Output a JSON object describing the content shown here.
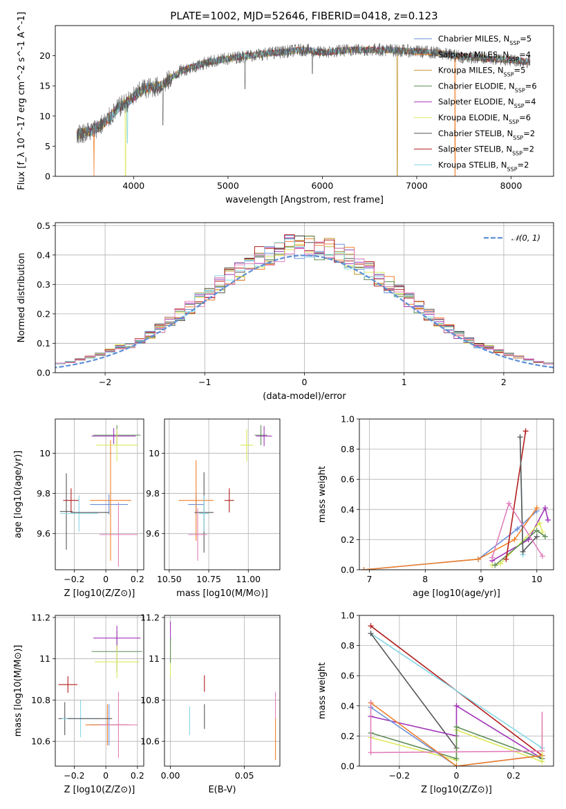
{
  "figure_title": "PLATE=1002, MJD=52646, FIBERID=0418, z=0.123",
  "colors": {
    "Chabrier MILES": "#6a8fd8",
    "Salpeter MILES": "#ef7f2a",
    "Kroupa MILES": "#c0962d",
    "Chabrier ELODIE": "#5e8d57",
    "Salpeter ELODIE": "#a032b8",
    "Kroupa ELODIE": "#dbe85a",
    "Chabrier STELIB": "#555555",
    "Salpeter STELIB": "#b21c1c",
    "Kroupa STELIB": "#85d6e6",
    "pink": "#e27fbb",
    "normal_curve": "#5b8fd6"
  },
  "chart_data": [
    {
      "id": "spectrum",
      "type": "line",
      "title": "PLATE=1002, MJD=52646, FIBERID=0418, z=0.123",
      "xlabel": "wavelength [Angstrom, rest frame]",
      "ylabel": "Flux [f_λ 10^-17 erg cm^-2 s^-1 A^-1]",
      "xlim": [
        3170,
        8450
      ],
      "ylim": [
        0,
        25
      ],
      "xticks": [
        4000,
        5000,
        6000,
        7000,
        8000
      ],
      "yticks": [
        0,
        5,
        10,
        15,
        20
      ],
      "legend_position": "right",
      "legend": [
        {
          "label": "Chabrier MILES",
          "nssp": "5"
        },
        {
          "label": "Salpeter MILES",
          "nssp": "4"
        },
        {
          "label": "Kroupa MILES",
          "nssp": "5"
        },
        {
          "label": "Chabrier ELODIE",
          "nssp": "6"
        },
        {
          "label": "Salpeter ELODIE",
          "nssp": "4"
        },
        {
          "label": "Kroupa ELODIE",
          "nssp": "6"
        },
        {
          "label": "Chabrier STELIB",
          "nssp": "2"
        },
        {
          "label": "Salpeter STELIB",
          "nssp": "2"
        },
        {
          "label": "Kroupa STELIB",
          "nssp": "2"
        }
      ],
      "continuum": [
        [
          3400,
          7.0
        ],
        [
          3550,
          7.5
        ],
        [
          3700,
          9.0
        ],
        [
          3850,
          11.5
        ],
        [
          3950,
          12.5
        ],
        [
          4100,
          14.5
        ],
        [
          4300,
          15.0
        ],
        [
          4500,
          17.5
        ],
        [
          4800,
          19.0
        ],
        [
          5000,
          19.5
        ],
        [
          5200,
          20.0
        ],
        [
          5500,
          20.5
        ],
        [
          5800,
          21.0
        ],
        [
          6000,
          20.5
        ],
        [
          6300,
          21.0
        ],
        [
          6600,
          21.0
        ],
        [
          6900,
          20.8
        ],
        [
          7200,
          20.5
        ],
        [
          7500,
          19.8
        ],
        [
          7800,
          19.5
        ],
        [
          8000,
          19.3
        ],
        [
          8200,
          19.0
        ]
      ],
      "dips": [
        {
          "x": 3580,
          "y": 0,
          "series": "Salpeter MILES"
        },
        {
          "x": 3915,
          "y": 0,
          "series": "Kroupa ELODIE"
        },
        {
          "x": 3935,
          "y": 5.5,
          "series": "Kroupa STELIB"
        },
        {
          "x": 4310,
          "y": 8.5,
          "series": "Chabrier STELIB"
        },
        {
          "x": 5180,
          "y": 14.5,
          "series": "Chabrier STELIB"
        },
        {
          "x": 5895,
          "y": 17.0,
          "series": "Chabrier STELIB"
        },
        {
          "x": 6795,
          "y": 0,
          "series": "Kroupa MILES"
        },
        {
          "x": 7405,
          "y": 0,
          "series": "Salpeter MILES"
        }
      ]
    },
    {
      "id": "residual_histogram",
      "type": "histogram",
      "xlabel": "(data-model)/error",
      "ylabel": "Normed distribution",
      "xlim": [
        -2.5,
        2.5
      ],
      "ylim": [
        0,
        0.51
      ],
      "xticks": [
        -2,
        -1,
        0,
        1,
        2
      ],
      "yticks": [
        0.0,
        0.1,
        0.2,
        0.3,
        0.4,
        0.5
      ],
      "bin_width": 0.1,
      "normal_label": "𝒩(0, 1)",
      "legend_position": "top-right"
    },
    {
      "id": "Z_vs_age",
      "type": "scatter",
      "xlabel": "Z [log10(Z/Z⊙)]",
      "ylabel": "age [log10(age/yr)]",
      "xlim": [
        -0.32,
        0.24
      ],
      "ylim": [
        9.42,
        10.17
      ],
      "xticks": [
        -0.2,
        0.0,
        0.2
      ],
      "yticks": [
        9.6,
        9.8,
        10.0
      ],
      "points": [
        {
          "series": "Chabrier MILES",
          "x": 0.02,
          "y": 9.745,
          "xerr": 0.12,
          "yerr": 0.05
        },
        {
          "series": "Salpeter MILES",
          "x": 0.03,
          "y": 9.765,
          "xerr": 0.13,
          "yerr": 0.3
        },
        {
          "series": "Chabrier ELODIE",
          "x": 0.07,
          "y": 10.09,
          "xerr": 0.15,
          "yerr": 0.05
        },
        {
          "series": "Salpeter ELODIE",
          "x": 0.05,
          "y": 10.085,
          "xerr": 0.14,
          "yerr": 0.04
        },
        {
          "series": "Kroupa ELODIE",
          "x": 0.07,
          "y": 10.04,
          "xerr": 0.13,
          "yerr": 0.08
        },
        {
          "series": "Chabrier STELIB",
          "x": -0.25,
          "y": 9.71,
          "xerr": 0.04,
          "yerr": 0.19
        },
        {
          "series": "Salpeter STELIB",
          "x": -0.22,
          "y": 9.765,
          "xerr": 0.05,
          "yerr": 0.06
        },
        {
          "series": "Kroupa STELIB",
          "x": -0.17,
          "y": 9.7,
          "xerr": 0.12,
          "yerr": 0.09
        },
        {
          "series": "pink",
          "x": 0.08,
          "y": 9.595,
          "xerr": 0.12,
          "yerr": 0.16
        },
        {
          "series": "Chabrier STELIB",
          "x": -0.1,
          "y": 9.705,
          "xerr": 0.12,
          "yerr": 0.0
        }
      ]
    },
    {
      "id": "mass_vs_age",
      "type": "scatter",
      "xlabel": "mass [log10(M/M⊙)]",
      "ylabel": "",
      "xlim": [
        10.47,
        11.2
      ],
      "ylim": [
        9.42,
        10.17
      ],
      "xticks": [
        10.5,
        10.75,
        11.0
      ],
      "xtick_labels": [
        "10.50",
        "10.75",
        "11.00"
      ],
      "yticks": [
        9.6,
        9.8,
        10.0
      ],
      "points": [
        {
          "series": "Chabrier MILES",
          "x": 10.67,
          "y": 9.745,
          "xerr": 0.05,
          "yerr": 0.05
        },
        {
          "series": "Salpeter MILES",
          "x": 10.67,
          "y": 9.765,
          "xerr": 0.11,
          "yerr": 0.2
        },
        {
          "series": "Chabrier ELODIE",
          "x": 11.08,
          "y": 10.09,
          "xerr": 0.04,
          "yerr": 0.05
        },
        {
          "series": "Salpeter ELODIE",
          "x": 11.1,
          "y": 10.085,
          "xerr": 0.05,
          "yerr": 0.05
        },
        {
          "series": "Kroupa ELODIE",
          "x": 10.99,
          "y": 10.04,
          "xerr": 0.04,
          "yerr": 0.08
        },
        {
          "series": "Chabrier STELIB",
          "x": 10.72,
          "y": 9.705,
          "xerr": 0.06,
          "yerr": 0.2
        },
        {
          "series": "Salpeter STELIB",
          "x": 10.88,
          "y": 9.765,
          "xerr": 0.03,
          "yerr": 0.06
        },
        {
          "series": "Kroupa STELIB",
          "x": 10.72,
          "y": 9.7,
          "xerr": 0.03,
          "yerr": 0.09
        },
        {
          "series": "pink",
          "x": 10.68,
          "y": 9.595,
          "xerr": 0.06,
          "yerr": 0.13
        }
      ]
    },
    {
      "id": "age_vs_weight",
      "type": "line",
      "xlabel": "age [log10(age/yr)]",
      "ylabel": "mass weight",
      "xlim": [
        6.82,
        10.3
      ],
      "ylim": [
        0,
        1.0
      ],
      "xticks": [
        7,
        8,
        9,
        10
      ],
      "yticks": [
        0.0,
        0.2,
        0.4,
        0.6,
        0.8,
        1.0
      ],
      "series": [
        {
          "name": "Chabrier MILES",
          "points": [
            [
              6.9,
              0.0
            ],
            [
              8.95,
              0.07
            ],
            [
              9.65,
              0.27
            ],
            [
              10.0,
              0.39
            ]
          ]
        },
        {
          "name": "Salpeter MILES",
          "points": [
            [
              6.9,
              0.0
            ],
            [
              8.95,
              0.07
            ],
            [
              9.6,
              0.2
            ],
            [
              10.0,
              0.41
            ]
          ]
        },
        {
          "name": "Salpeter ELODIE",
          "points": [
            [
              9.2,
              0.06
            ],
            [
              9.85,
              0.2
            ],
            [
              10.15,
              0.41
            ],
            [
              10.2,
              0.33
            ]
          ]
        },
        {
          "name": "Kroupa ELODIE",
          "points": [
            [
              9.2,
              0.03
            ],
            [
              9.35,
              0.04
            ],
            [
              10.05,
              0.31
            ],
            [
              10.1,
              0.25
            ]
          ]
        },
        {
          "name": "Chabrier ELODIE",
          "points": [
            [
              9.25,
              0.03
            ],
            [
              10.0,
              0.26
            ],
            [
              10.15,
              0.22
            ]
          ]
        },
        {
          "name": "Salpeter STELIB",
          "points": [
            [
              9.45,
              0.07
            ],
            [
              9.8,
              0.92
            ]
          ]
        },
        {
          "name": "Kroupa STELIB",
          "points": [
            [
              9.7,
              0.88
            ],
            [
              9.75,
              0.1
            ]
          ]
        },
        {
          "name": "Chabrier STELIB",
          "points": [
            [
              9.7,
              0.88
            ],
            [
              9.75,
              0.12
            ],
            [
              10.0,
              0.22
            ]
          ]
        },
        {
          "name": "pink",
          "points": [
            [
              9.2,
              0.08
            ],
            [
              9.5,
              0.44
            ],
            [
              10.1,
              0.09
            ]
          ]
        }
      ]
    },
    {
      "id": "Z_vs_mass",
      "type": "scatter",
      "xlabel": "Z [log10(Z/Z⊙)]",
      "ylabel": "mass [log10(M/M⊙)]",
      "xlim": [
        -0.32,
        0.24
      ],
      "ylim": [
        10.48,
        11.21
      ],
      "xticks": [
        -0.2,
        0.0,
        0.2
      ],
      "yticks": [
        10.6,
        10.8,
        11.0,
        11.2
      ],
      "points": [
        {
          "series": "Chabrier MILES",
          "x": 0.02,
          "y": 10.68,
          "xerr": 0.12,
          "yerr": 0.1
        },
        {
          "series": "Salpeter MILES",
          "x": 0.01,
          "y": 10.68,
          "xerr": 0.14,
          "yerr": 0.1
        },
        {
          "series": "Chabrier ELODIE",
          "x": 0.07,
          "y": 11.035,
          "xerr": 0.16,
          "yerr": 0.1
        },
        {
          "series": "Salpeter ELODIE",
          "x": 0.07,
          "y": 11.1,
          "xerr": 0.15,
          "yerr": 0.06
        },
        {
          "series": "Kroupa ELODIE",
          "x": 0.07,
          "y": 10.985,
          "xerr": 0.14,
          "yerr": 0.08
        },
        {
          "series": "Chabrier STELIB",
          "x": -0.26,
          "y": 10.71,
          "xerr": 0.04,
          "yerr": 0.08
        },
        {
          "series": "Salpeter STELIB",
          "x": -0.24,
          "y": 10.875,
          "xerr": 0.06,
          "yerr": 0.04
        },
        {
          "series": "Kroupa STELIB",
          "x": -0.16,
          "y": 10.71,
          "xerr": 0.12,
          "yerr": 0.09
        },
        {
          "series": "pink",
          "x": 0.08,
          "y": 10.68,
          "xerr": 0.12,
          "yerr": 0.16
        },
        {
          "series": "Chabrier STELIB",
          "x": -0.1,
          "y": 10.71,
          "xerr": 0.14,
          "yerr": 0.0
        }
      ]
    },
    {
      "id": "ebv_vs_mass",
      "type": "scatter",
      "xlabel": "E(B-V)",
      "ylabel": "",
      "xlim": [
        -0.004,
        0.074
      ],
      "ylim": [
        10.48,
        11.21
      ],
      "xticks": [
        0.0,
        0.05
      ],
      "xtick_labels": [
        "0.00",
        "0.05"
      ],
      "yticks": [
        10.6,
        10.8,
        11.0,
        11.2
      ],
      "points": [
        {
          "series": "Salpeter ELODIE",
          "x": 0.0,
          "y": 11.12,
          "xerr": 0,
          "yerr": 0.06
        },
        {
          "series": "Kroupa ELODIE",
          "x": 0.0,
          "y": 10.99,
          "xerr": 0,
          "yerr": 0.08
        },
        {
          "series": "Chabrier ELODIE",
          "x": 0.0,
          "y": 11.04,
          "xerr": 0,
          "yerr": 0.06
        },
        {
          "series": "Kroupa STELIB",
          "x": 0.013,
          "y": 10.7,
          "xerr": 0,
          "yerr": 0.07
        },
        {
          "series": "Chabrier STELIB",
          "x": 0.023,
          "y": 10.72,
          "xerr": 0,
          "yerr": 0.06
        },
        {
          "series": "Salpeter STELIB",
          "x": 0.023,
          "y": 10.88,
          "xerr": 0,
          "yerr": 0.04
        },
        {
          "series": "pink",
          "x": 0.071,
          "y": 10.77,
          "xerr": 0,
          "yerr": 0.07
        },
        {
          "series": "Salpeter MILES",
          "x": 0.071,
          "y": 10.61,
          "xerr": 0,
          "yerr": 0.1
        }
      ]
    },
    {
      "id": "Z_vs_weight",
      "type": "line",
      "xlabel": "Z [log10(Z/Z⊙)]",
      "ylabel": "mass weight",
      "xlim": [
        -0.34,
        0.34
      ],
      "ylim": [
        0,
        1.0
      ],
      "xticks": [
        -0.2,
        0.0,
        0.2
      ],
      "yticks": [
        0.0,
        0.2,
        0.4,
        0.6,
        0.8,
        1.0
      ],
      "series": [
        {
          "name": "Salpeter STELIB",
          "points": [
            [
              -0.3,
              0.93
            ],
            [
              0.3,
              0.07
            ]
          ]
        },
        {
          "name": "Kroupa STELIB",
          "points": [
            [
              -0.3,
              0.88
            ],
            [
              0.3,
              0.12
            ]
          ]
        },
        {
          "name": "Chabrier STELIB",
          "points": [
            [
              -0.3,
              0.88
            ],
            [
              0.0,
              0.12
            ]
          ]
        },
        {
          "name": "Salpeter ELODIE",
          "points": [
            [
              -0.3,
              0.33
            ],
            [
              0.0,
              0.2
            ],
            [
              0.0,
              0.4
            ],
            [
              0.3,
              0.05
            ]
          ]
        },
        {
          "name": "Kroupa ELODIE",
          "points": [
            [
              -0.3,
              0.19
            ],
            [
              0.0,
              0.04
            ],
            [
              0.0,
              0.24
            ],
            [
              0.3,
              0.03
            ]
          ]
        },
        {
          "name": "Chabrier ELODIE",
          "points": [
            [
              -0.3,
              0.22
            ],
            [
              0.0,
              0.05
            ],
            [
              0.0,
              0.26
            ],
            [
              0.3,
              0.05
            ]
          ]
        },
        {
          "name": "Chabrier MILES",
          "points": [
            [
              -0.3,
              0.39
            ],
            [
              0.0,
              0.0
            ],
            [
              0.3,
              0.07
            ]
          ]
        },
        {
          "name": "Salpeter MILES",
          "points": [
            [
              -0.3,
              0.42
            ],
            [
              0.0,
              0.0
            ],
            [
              0.3,
              0.07
            ]
          ]
        },
        {
          "name": "pink",
          "points": [
            [
              -0.3,
              0.09
            ],
            [
              0.3,
              0.1
            ]
          ]
        }
      ],
      "vertical_segments": [
        {
          "name": "Kroupa ELODIE",
          "x": 0.3,
          "y0": 0.03,
          "y1": 0.3
        },
        {
          "name": "pink",
          "x": 0.3,
          "y0": 0.1,
          "y1": 0.36
        },
        {
          "name": "pink",
          "x": -0.3,
          "y0": 0.09,
          "y1": 0.44
        }
      ]
    }
  ]
}
